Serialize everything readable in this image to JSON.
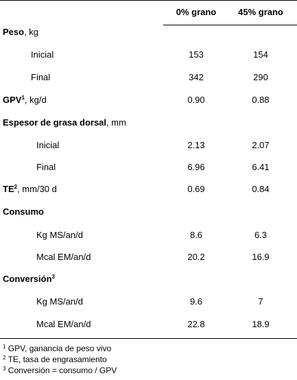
{
  "table": {
    "headers": {
      "col1": "0% grano",
      "col2": "45% grano"
    },
    "rows": {
      "peso": {
        "label_bold": "Peso",
        "label_rest": ", kg"
      },
      "peso_inicial": {
        "label": "Inicial",
        "v1": "153",
        "v2": "154"
      },
      "peso_final": {
        "label": "Final",
        "v1": "342",
        "v2": "290"
      },
      "gpv": {
        "label_bold": "GPV",
        "sup": "1",
        "label_rest": ", kg/d",
        "v1": "0.90",
        "v2": "0.88"
      },
      "espesor": {
        "label_bold": "Espesor de grasa dorsal",
        "label_rest": ", mm"
      },
      "espesor_inicial": {
        "label": "Inicial",
        "v1": "2.13",
        "v2": "2.07"
      },
      "espesor_final": {
        "label": "Final",
        "v1": "6.96",
        "v2": "6.41"
      },
      "te": {
        "label_bold": "TE",
        "sup": "2",
        "label_rest": ", mm/30 d",
        "v1": "0.69",
        "v2": "0.84"
      },
      "consumo": {
        "label_bold": "Consumo"
      },
      "consumo_ms": {
        "label": "Kg MS/an/d",
        "v1": "8.6",
        "v2": "6.3"
      },
      "consumo_em": {
        "label": "Mcal EM/an/d",
        "v1": "20.2",
        "v2": "16.9"
      },
      "conversion": {
        "label_bold": "Conversión",
        "sup": "3"
      },
      "conversion_ms": {
        "label": "Kg MS/an/d",
        "v1": "9.6",
        "v2": "7"
      },
      "conversion_em": {
        "label": "Mcal EM/an/d",
        "v1": "22.8",
        "v2": "18.9"
      }
    }
  },
  "footnotes": [
    {
      "mark": "1",
      "text": "GPV, ganancia de peso vivo"
    },
    {
      "mark": "2",
      "text": "TE, tasa de engrasamiento"
    },
    {
      "mark": "3",
      "text": "Conversión = consumo / GPV"
    }
  ]
}
